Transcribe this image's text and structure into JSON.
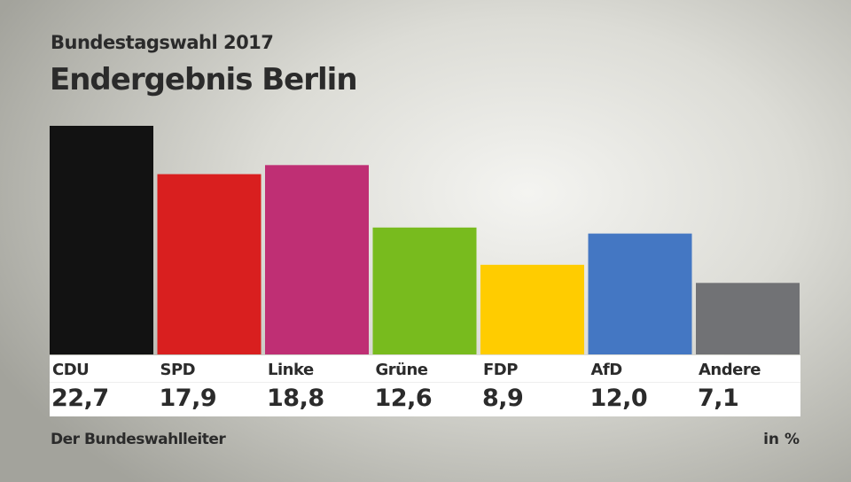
{
  "chart_data": {
    "type": "bar",
    "subtitle": "Bundestagswahl 2017",
    "title": "Endergebnis Berlin",
    "categories": [
      "CDU",
      "SPD",
      "Linke",
      "Grüne",
      "FDP",
      "AfD",
      "Andere"
    ],
    "values": [
      22.7,
      17.9,
      18.8,
      12.6,
      8.9,
      12.0,
      7.1
    ],
    "value_labels": [
      "22,7",
      "17,9",
      "18,8",
      "12,6",
      "8,9",
      "12,0",
      "7,1"
    ],
    "colors": [
      "#121212",
      "#d91f1f",
      "#bf2f74",
      "#78bb1e",
      "#ffcc00",
      "#4477c3",
      "#717275"
    ],
    "unit": "in %",
    "source": "Der Bundeswahlleiter",
    "ylim": [
      0,
      22.7
    ],
    "grid": false,
    "legend": "none"
  }
}
